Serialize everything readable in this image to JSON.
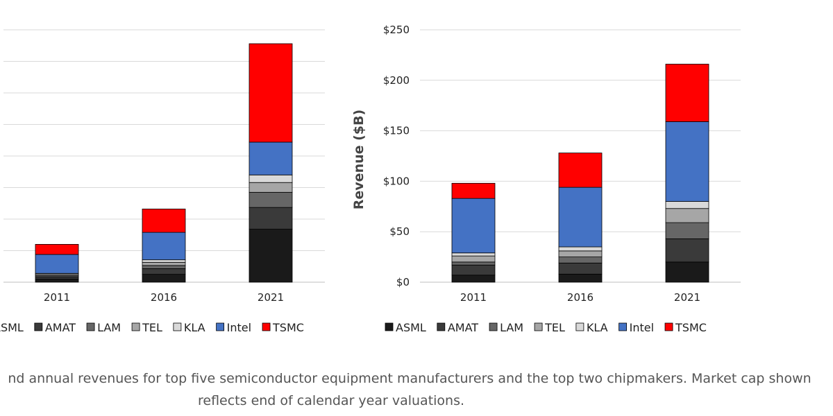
{
  "companies": [
    "ASML",
    "AMAT",
    "LAM",
    "TEL",
    "KLA",
    "Intel",
    "TSMC"
  ],
  "colors": {
    "ASML": "#1a1a1a",
    "AMAT": "#3a3a3a",
    "LAM": "#666666",
    "TEL": "#a6a6a6",
    "KLA": "#d9d9d9",
    "Intel": "#4472c4",
    "TSMC": "#ff0000"
  },
  "chart_data": [
    {
      "type": "bar",
      "stacked": true,
      "title": "",
      "xlabel": "",
      "ylabel": "",
      "categories": [
        "2011",
        "2016",
        "2021"
      ],
      "ylim": [
        0,
        800
      ],
      "grid": true,
      "y_tick_labels_visible": false,
      "legend_position": "bottom",
      "series": [
        {
          "name": "ASML",
          "values": [
            10,
            25,
            168
          ]
        },
        {
          "name": "AMAT",
          "values": [
            7,
            18,
            69
          ]
        },
        {
          "name": "LAM",
          "values": [
            4,
            10,
            48
          ]
        },
        {
          "name": "TEL",
          "values": [
            4,
            10,
            31
          ]
        },
        {
          "name": "KLA",
          "values": [
            3,
            8,
            24
          ]
        },
        {
          "name": "Intel",
          "values": [
            60,
            87,
            104
          ]
        },
        {
          "name": "TSMC",
          "values": [
            32,
            74,
            312
          ]
        }
      ]
    },
    {
      "type": "bar",
      "stacked": true,
      "title": "",
      "xlabel": "",
      "ylabel": "Revenue ($B)",
      "categories": [
        "2011",
        "2016",
        "2021"
      ],
      "ylim": [
        0,
        250
      ],
      "yticks": [
        0,
        50,
        100,
        150,
        200,
        250
      ],
      "ytick_labels": [
        "$0",
        "$50",
        "$100",
        "$150",
        "$200",
        "$250"
      ],
      "grid": true,
      "legend_position": "bottom",
      "series": [
        {
          "name": "ASML",
          "values": [
            7,
            8,
            20
          ]
        },
        {
          "name": "AMAT",
          "values": [
            10,
            11,
            23
          ]
        },
        {
          "name": "LAM",
          "values": [
            3,
            6,
            16
          ]
        },
        {
          "name": "TEL",
          "values": [
            6,
            6,
            14
          ]
        },
        {
          "name": "KLA",
          "values": [
            3,
            4,
            7
          ]
        },
        {
          "name": "Intel",
          "values": [
            54,
            59,
            79
          ]
        },
        {
          "name": "TSMC",
          "values": [
            15,
            34,
            57
          ]
        }
      ]
    }
  ],
  "caption": {
    "line1": "nd annual revenues for top five semiconductor equipment manufacturers and the top two chipmakers. Market cap shown",
    "line2": "reflects end of calendar year valuations."
  }
}
